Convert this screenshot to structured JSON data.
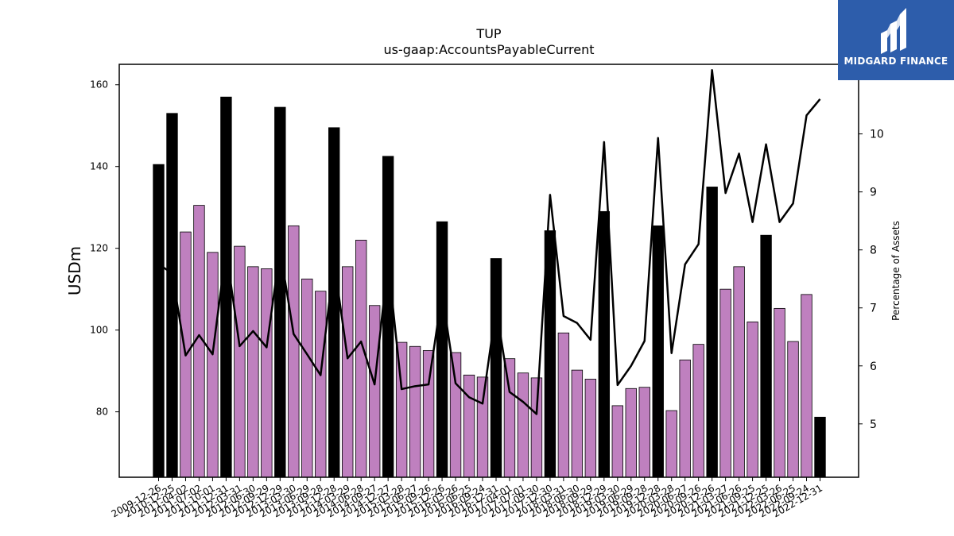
{
  "logo": {
    "text": "MIDGARD FINANCE",
    "bg_color": "#2d5dab",
    "icon": "midgard-logo-icon"
  },
  "chart_data": {
    "type": "bar",
    "title": "TUP",
    "subtitle": "us-gaap:AccountsPayableCurrent",
    "ylabel": "USDm",
    "y2label": "Percentage of Assets",
    "ylim": [
      64,
      165
    ],
    "y2lim": [
      4.08,
      11.2
    ],
    "yticks": [
      80,
      100,
      120,
      140,
      160
    ],
    "y2ticks": [
      5,
      6,
      7,
      8,
      9,
      10,
      11
    ],
    "colors": {
      "annual_bar": "#000000",
      "quarter_bar": "#bf80bf",
      "line": "#000000"
    },
    "categories": [
      "2009-12-26",
      "2010-12-25",
      "2011-04-02",
      "2011-07-02",
      "2011-10-01",
      "2011-12-31",
      "2012-03-31",
      "2012-06-30",
      "2012-09-29",
      "2012-12-29",
      "2013-03-30",
      "2013-06-29",
      "2013-09-28",
      "2013-12-28",
      "2014-03-29",
      "2014-06-28",
      "2014-09-27",
      "2014-12-27",
      "2015-03-28",
      "2015-06-27",
      "2015-09-26",
      "2015-12-26",
      "2016-03-26",
      "2016-06-25",
      "2016-09-24",
      "2016-12-31",
      "2017-04-01",
      "2017-07-01",
      "2017-09-30",
      "2017-12-30",
      "2018-03-31",
      "2018-06-30",
      "2018-09-29",
      "2018-12-29",
      "2019-03-30",
      "2019-06-29",
      "2019-09-28",
      "2019-12-28",
      "2020-03-28",
      "2020-06-27",
      "2020-09-26",
      "2020-12-26",
      "2021-03-27",
      "2021-06-26",
      "2021-09-25",
      "2021-12-25",
      "2022-03-26",
      "2022-06-25",
      "2022-09-24",
      "2022-12-31"
    ],
    "values": [
      140.5,
      153,
      124,
      130.5,
      119,
      157,
      120.5,
      115.5,
      115,
      154.5,
      125.5,
      112.5,
      109.5,
      149.5,
      115.5,
      122,
      106,
      142.5,
      97,
      96,
      95,
      126.5,
      94.5,
      89,
      88.5,
      117.5,
      93,
      89.5,
      88.3,
      124.3,
      99.3,
      90.2,
      88,
      129,
      81.5,
      85.7,
      86,
      125.5,
      80.3,
      92.7,
      96.5,
      135,
      110,
      115.5,
      102,
      123.2,
      105.3,
      97.2,
      108.7,
      78.7
    ],
    "annual": [
      true,
      true,
      false,
      false,
      false,
      true,
      false,
      false,
      false,
      true,
      false,
      false,
      false,
      true,
      false,
      false,
      false,
      true,
      false,
      false,
      false,
      true,
      false,
      false,
      false,
      true,
      false,
      false,
      false,
      true,
      false,
      false,
      false,
      true,
      false,
      false,
      false,
      true,
      false,
      false,
      false,
      true,
      false,
      false,
      false,
      true,
      false,
      false,
      false,
      true
    ],
    "series": [
      {
        "values": [
          7.75,
          7.6,
          6.18,
          6.53,
          6.2,
          8.0,
          6.34,
          6.6,
          6.32,
          8.0,
          6.55,
          6.2,
          5.84,
          7.8,
          6.13,
          6.42,
          5.68,
          7.8,
          5.6,
          5.65,
          5.68,
          7.25,
          5.7,
          5.46,
          5.35,
          7.0,
          5.55,
          5.38,
          5.17,
          8.95,
          6.86,
          6.74,
          6.45,
          9.86,
          5.67,
          6.0,
          6.43,
          9.93,
          6.22,
          7.75,
          8.1,
          11.1,
          8.98,
          9.66,
          8.48,
          9.82,
          8.48,
          8.8,
          10.32,
          10.6
        ]
      }
    ]
  }
}
